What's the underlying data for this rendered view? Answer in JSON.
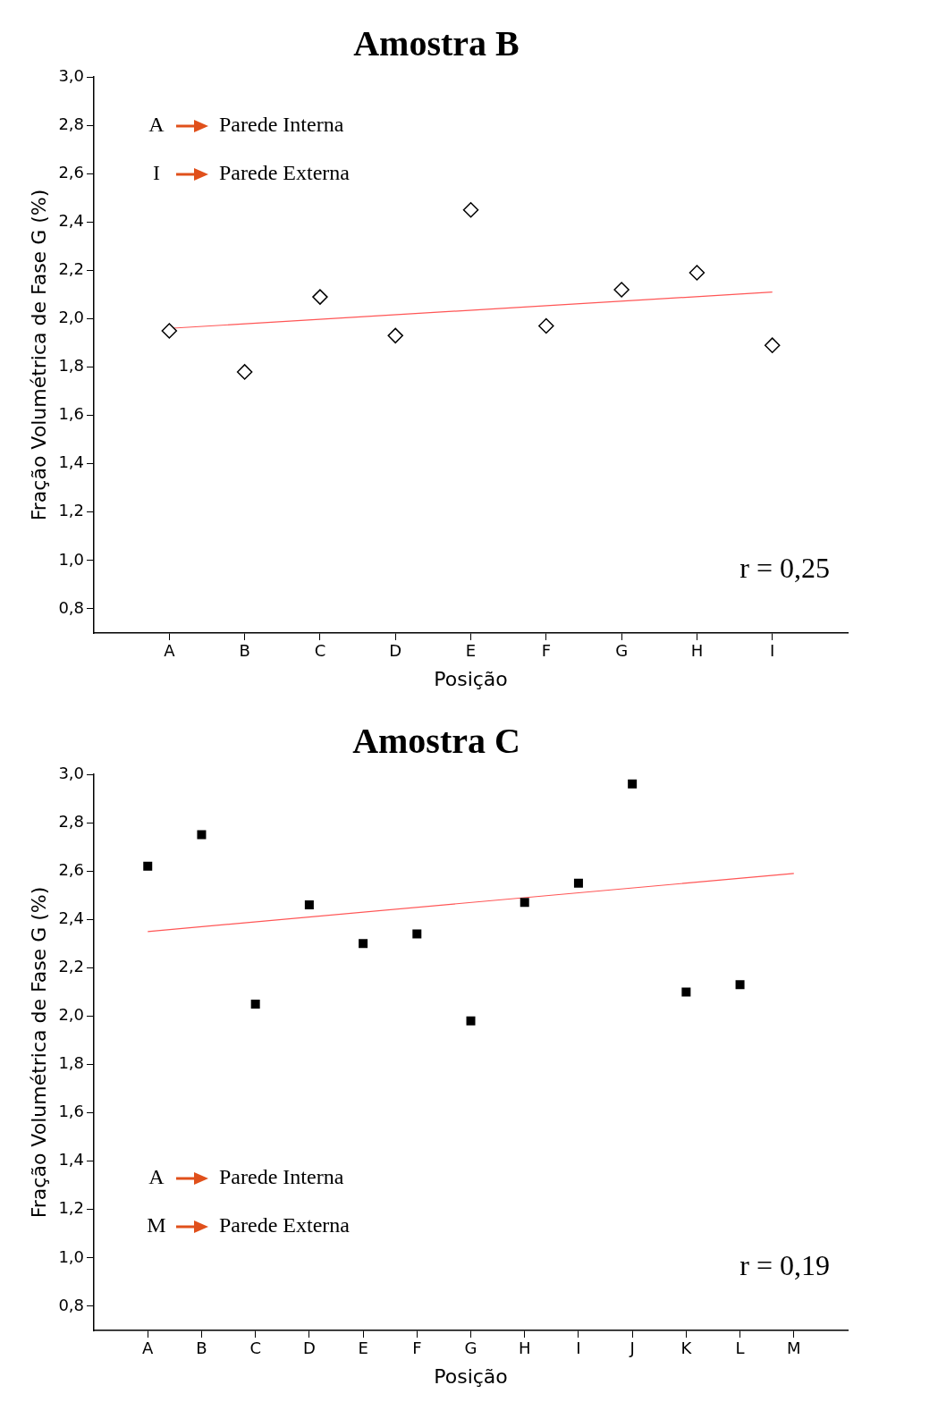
{
  "chart_data": [
    {
      "type": "scatter",
      "title": "Amostra B",
      "xlabel": "Posição",
      "ylabel": "Fração Volumétrica de Fase G (%)",
      "categories": [
        "A",
        "B",
        "C",
        "D",
        "E",
        "F",
        "G",
        "H",
        "I"
      ],
      "series": [
        {
          "color": "#000000",
          "marker": "diamond",
          "values": [
            1.95,
            1.78,
            2.09,
            1.93,
            2.45,
            1.97,
            2.12,
            2.19,
            1.89
          ]
        },
        {
          "type": "line",
          "color": "#ff5555",
          "marker": "none",
          "x": [
            "A",
            "I"
          ],
          "values": [
            1.96,
            2.11
          ]
        }
      ],
      "ylim": [
        0.7,
        3.0
      ],
      "yticks": [
        {
          "value": 0.8,
          "label": "0,8"
        },
        {
          "value": 1.0,
          "label": "1,0"
        },
        {
          "value": 1.2,
          "label": "1,2"
        },
        {
          "value": 1.4,
          "label": "1,4"
        },
        {
          "value": 1.6,
          "label": "1,6"
        },
        {
          "value": 1.8,
          "label": "1,8"
        },
        {
          "value": 2.0,
          "label": "2,0"
        },
        {
          "value": 2.2,
          "label": "2,2"
        },
        {
          "value": 2.4,
          "label": "2,4"
        },
        {
          "value": 2.6,
          "label": "2,6"
        },
        {
          "value": 2.8,
          "label": "2,8"
        },
        {
          "value": 3.0,
          "label": "3,0"
        }
      ],
      "annotations": [
        "A",
        "Parede Interna",
        "I",
        "Parede Externa",
        "r = 0,25"
      ],
      "grid": false,
      "legend": false
    },
    {
      "type": "scatter",
      "title": "Amostra C",
      "xlabel": "Posição",
      "ylabel": "Fração Volumétrica de Fase G (%)",
      "categories": [
        "A",
        "B",
        "C",
        "D",
        "E",
        "F",
        "G",
        "H",
        "I",
        "J",
        "K",
        "L",
        "M"
      ],
      "series": [
        {
          "color": "#000000",
          "marker": "square",
          "values": [
            2.62,
            2.75,
            2.05,
            2.46,
            2.3,
            2.34,
            1.98,
            2.47,
            2.55,
            2.96,
            2.1,
            2.13,
            null
          ]
        },
        {
          "type": "line",
          "color": "#ff5555",
          "marker": "none",
          "x": [
            "A",
            "M"
          ],
          "values": [
            2.35,
            2.59
          ]
        }
      ],
      "ylim": [
        0.7,
        3.0
      ],
      "yticks": [
        {
          "value": 0.8,
          "label": "0,8"
        },
        {
          "value": 1.0,
          "label": "1,0"
        },
        {
          "value": 1.2,
          "label": "1,2"
        },
        {
          "value": 1.4,
          "label": "1,4"
        },
        {
          "value": 1.6,
          "label": "1,6"
        },
        {
          "value": 1.8,
          "label": "1,8"
        },
        {
          "value": 2.0,
          "label": "2,0"
        },
        {
          "value": 2.2,
          "label": "2,2"
        },
        {
          "value": 2.4,
          "label": "2,4"
        },
        {
          "value": 2.6,
          "label": "2,6"
        },
        {
          "value": 2.8,
          "label": "2,8"
        },
        {
          "value": 3.0,
          "label": "3,0"
        }
      ],
      "annotations": [
        "A",
        "Parede Interna",
        "M",
        "Parede Externa",
        "r = 0,19"
      ],
      "grid": false,
      "legend": false
    }
  ]
}
